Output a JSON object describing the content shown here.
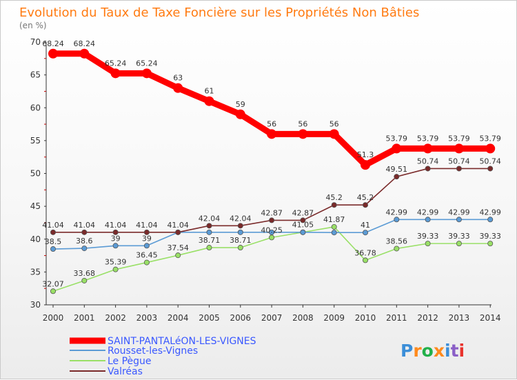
{
  "title": "Evolution du Taux de Taxe Foncière sur les Propriétés Non Bâties",
  "subtitle": "(en %)",
  "logo": {
    "text": "Proxiti",
    "colors": [
      "#3b8ed8",
      "#ff8a1c",
      "#22b04a",
      "#ff8a1c",
      "#3b8ed8",
      "#8b5fc7",
      "#e8322c"
    ]
  },
  "chart_data": {
    "type": "line",
    "title": "Evolution du Taux de Taxe Foncière sur les Propriétés Non Bâties",
    "ylabel": "(en %)",
    "xlabel": "",
    "ylim": [
      30,
      70
    ],
    "yticks": [
      30,
      35,
      40,
      45,
      50,
      55,
      60,
      65,
      70
    ],
    "categories": [
      "2000",
      "2001",
      "2002",
      "2003",
      "2004",
      "2005",
      "2006",
      "2007",
      "2008",
      "2009",
      "2010",
      "2011",
      "2012",
      "2013",
      "2014"
    ],
    "grid": false,
    "legend_position": "bottom-left",
    "series": [
      {
        "name": "SAINT-PANTALéON-LES-VIGNES",
        "color": "#ff0000",
        "values": [
          68.24,
          68.24,
          65.24,
          65.24,
          63,
          61,
          59,
          56,
          56,
          56,
          51.3,
          53.79,
          53.79,
          53.79,
          53.79
        ],
        "labels": [
          "68.24",
          "68.24",
          "65.24",
          "65.24",
          "63",
          "61",
          "59",
          "56",
          "56",
          "56",
          "51.3",
          "53.79",
          "53.79",
          "53.79",
          "53.79"
        ]
      },
      {
        "name": "Rousset-les-Vignes",
        "color": "#5b9bd5",
        "values": [
          38.5,
          38.6,
          39,
          39,
          41.04,
          41.04,
          41.04,
          41.04,
          41.04,
          41,
          41,
          42.99,
          42.99,
          42.99,
          42.99
        ],
        "labels": [
          "38.5",
          "38.6",
          "39",
          "39",
          "",
          "",
          "",
          "",
          "",
          "",
          "41",
          "42.99",
          "42.99",
          "42.99",
          "42.99"
        ]
      },
      {
        "name": "Le Pègue",
        "color": "#99e066",
        "values": [
          32.07,
          33.68,
          35.39,
          36.45,
          37.54,
          38.71,
          38.71,
          40.25,
          41.05,
          41.87,
          36.78,
          38.56,
          39.33,
          39.33,
          39.33
        ],
        "labels": [
          "32.07",
          "33.68",
          "35.39",
          "36.45",
          "37.54",
          "38.71",
          "38.71",
          "40.25",
          "41.05",
          "41.87",
          "36.78",
          "38.56",
          "39.33",
          "39.33",
          "39.33"
        ]
      },
      {
        "name": "Valréas",
        "color": "#7a2a2a",
        "values": [
          41.04,
          41.04,
          41.04,
          41.04,
          41.04,
          42.04,
          42.04,
          42.87,
          42.87,
          45.2,
          45.2,
          49.51,
          50.74,
          50.74,
          50.74
        ],
        "labels": [
          "41.04",
          "41.04",
          "41.04",
          "41.04",
          "41.04",
          "42.04",
          "42.04",
          "42.87",
          "42.87",
          "45.2",
          "45.2",
          "49.51",
          "50.74",
          "50.74",
          "50.74"
        ]
      }
    ]
  }
}
